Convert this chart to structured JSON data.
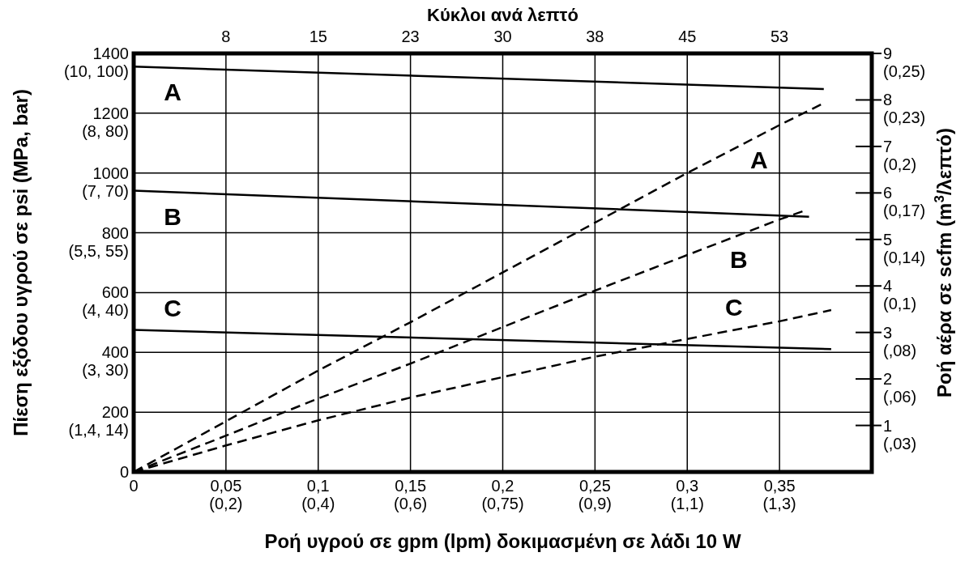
{
  "chart_data": {
    "type": "line",
    "x2label": "Κύκλοι ανά λεπτό",
    "xlabel": "Ροή υγρού σε gpm (lpm) δοκιμασμένη σε λάδι 10 W",
    "ylabel": "Πίεση εξόδου υγρού σε psi (MPa, bar)",
    "y2label": "Ροή αέρα σε scfm (m$^{3}$/λεπτό)",
    "xlim": [
      0,
      0.4
    ],
    "xticks": [
      0,
      {
        "value": 0.05,
        "label": "0,05"
      },
      {
        "value": 0.1,
        "label": "0,1"
      },
      {
        "value": 0.15,
        "label": "0,15"
      },
      {
        "value": 0.2,
        "label": "0,2"
      },
      {
        "value": 0.25,
        "label": "0,25"
      },
      {
        "value": 0.3,
        "label": "0,3"
      },
      {
        "value": 0.35,
        "label": "0,35"
      }
    ],
    "x2lim": [
      0,
      60
    ],
    "x2ticks": [
      {
        "value": 7.5,
        "label": "8"
      },
      15,
      {
        "value": 22.5,
        "label": "23"
      },
      30,
      {
        "value": 37.5,
        "label": "38"
      },
      45,
      {
        "value": 52.5,
        "label": "53"
      }
    ],
    "ylim": [
      0,
      1400
    ],
    "yticks": [
      0,
      200,
      400,
      600,
      800,
      1000,
      1200,
      1400
    ],
    "y2lim": [
      0,
      9
    ],
    "y2ticks": [
      1,
      2,
      3,
      4,
      5,
      6,
      7,
      8,
      9
    ],
    "annotations": [
      "(0,2)",
      "(0,4)",
      "(0,6)",
      "(0,75)",
      "(0,9)",
      "(1,1)",
      "(1,3)",
      "(1,4, 14)",
      "(3, 30)",
      "(4, 40)",
      "(5,5, 55)",
      "(7, 70)",
      "(8, 80)",
      "(10, 100)",
      "(,03)",
      "(,06)",
      "(,08)",
      "(0,1)",
      "(0,14)",
      "(0,17)",
      "(0,2)",
      "(0,23)",
      "(0,25)"
    ],
    "grid": true,
    "series": [
      {
        "name": "A",
        "color": "#000000",
        "line_style": "solid",
        "x": [
          0,
          0.374
        ],
        "values": [
          1356,
          1281
        ]
      },
      {
        "name": "B",
        "color": "#000000",
        "line_style": "solid",
        "x": [
          0,
          0.366
        ],
        "values": [
          941,
          854
        ]
      },
      {
        "name": "C",
        "color": "#000000",
        "line_style": "solid",
        "x": [
          0,
          0.378
        ],
        "values": [
          475,
          411
        ]
      },
      {
        "name": "A",
        "color": "#000000",
        "line_style": "dashed",
        "axis": "y2",
        "x": [
          0,
          0.05,
          0.1,
          0.15,
          0.3,
          0.35,
          0.374
        ],
        "values": [
          0,
          1.09,
          2.18,
          3.22,
          6.43,
          7.46,
          7.93
        ]
      },
      {
        "name": "B",
        "color": "#000000",
        "line_style": "dashed",
        "axis": "y2",
        "x": [
          0,
          0.05,
          0.1,
          0.15,
          0.25,
          0.35,
          0.363
        ],
        "values": [
          0,
          0.78,
          1.58,
          2.33,
          3.9,
          5.43,
          5.61
        ]
      },
      {
        "name": "C",
        "color": "#000000",
        "line_style": "dashed",
        "axis": "y2",
        "x": [
          0,
          0.05,
          0.1,
          0.15,
          0.25,
          0.35,
          0.378
        ],
        "values": [
          0,
          0.57,
          1.11,
          1.6,
          2.48,
          3.24,
          3.48
        ]
      }
    ]
  }
}
